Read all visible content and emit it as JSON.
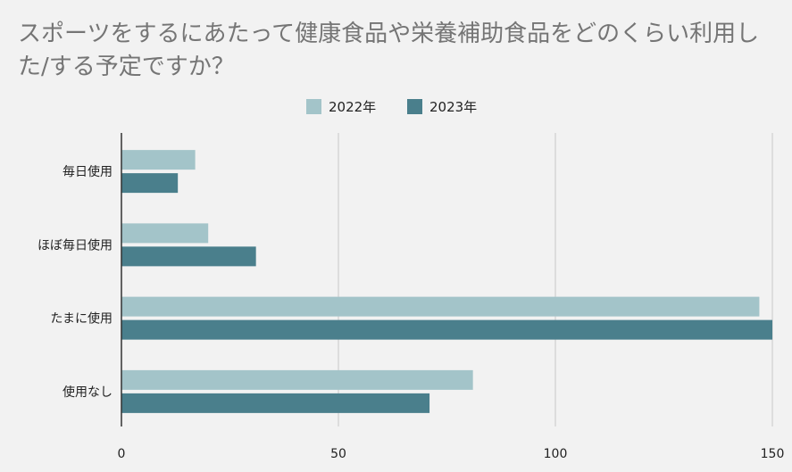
{
  "chart_data": {
    "type": "bar",
    "orientation": "horizontal",
    "title": "スポーツをするにあたって健康食品や栄養補助食品をどのくらい利用した/する予定ですか？",
    "categories": [
      "毎日使用",
      "ほぼ毎日使用",
      "たまに使用",
      "使用なし"
    ],
    "series": [
      {
        "name": "2022年",
        "color": "#a3c4c9",
        "values": [
          17,
          20,
          147,
          81
        ]
      },
      {
        "name": "2023年",
        "color": "#4a7f8c",
        "values": [
          13,
          31,
          150,
          71
        ]
      }
    ],
    "xlim": [
      0,
      150
    ],
    "xticks": [
      "0",
      "50",
      "100",
      "150"
    ],
    "grid": true,
    "legend_position": "top"
  }
}
